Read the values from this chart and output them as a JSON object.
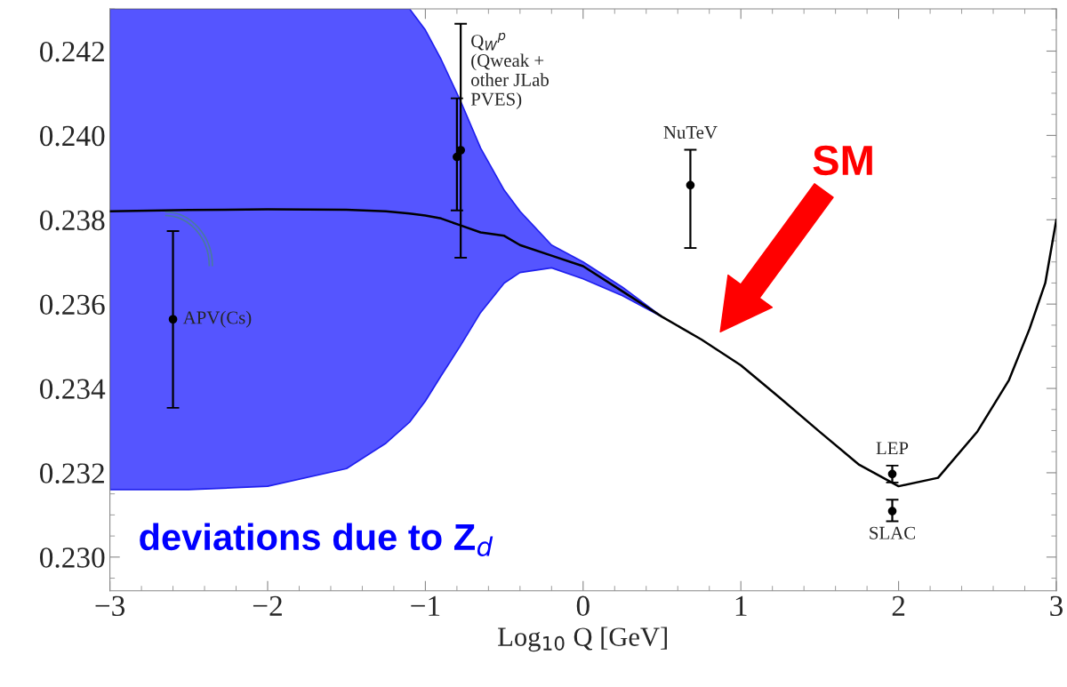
{
  "chart_data": {
    "type": "line",
    "xlabel": "Log$_{10}$ Q [GeV]",
    "xlim": [
      -3,
      3
    ],
    "ylim": [
      0.2292,
      0.243
    ],
    "xticks": [
      {
        "value": -3,
        "label": "−3"
      },
      {
        "value": -2,
        "label": "−2"
      },
      {
        "value": -1,
        "label": "−1"
      },
      0,
      1,
      2,
      3
    ],
    "yticks": [
      {
        "value": 0.23,
        "label": "0.230"
      },
      {
        "value": 0.232,
        "label": "0.232"
      },
      {
        "value": 0.234,
        "label": "0.234"
      },
      {
        "value": 0.236,
        "label": "0.236"
      },
      {
        "value": 0.238,
        "label": "0.238"
      },
      {
        "value": 0.24,
        "label": "0.240"
      },
      {
        "value": 0.242,
        "label": "0.242"
      }
    ],
    "series": [
      {
        "color": "#000000",
        "x": [
          -3,
          -2.5,
          -2,
          -1.5,
          -1.25,
          -1.1,
          -1,
          -0.9,
          -0.78,
          -0.65,
          -0.5,
          -0.4,
          -0.2,
          0,
          0.25,
          0.5,
          0.75,
          1,
          1.25,
          1.5,
          1.75,
          2,
          2.25,
          2.5,
          2.7,
          2.83,
          2.93,
          3
        ],
        "values": [
          0.2382,
          0.23823,
          0.23825,
          0.23824,
          0.2382,
          0.23815,
          0.2381,
          0.23803,
          0.23787,
          0.2377,
          0.23762,
          0.2374,
          0.23715,
          0.2369,
          0.2363,
          0.2357,
          0.23516,
          0.23455,
          0.23377,
          0.23297,
          0.23219,
          0.23168,
          0.23188,
          0.23298,
          0.2342,
          0.23541,
          0.2365,
          0.238
        ],
        "lower": [
          0.2316,
          0.2316,
          0.23168,
          0.2321,
          0.2327,
          0.2332,
          0.2337,
          0.2343,
          0.235,
          0.2358,
          0.2365,
          0.23675,
          0.23686,
          0.2366,
          0.2362,
          0.2357,
          null,
          null,
          null,
          null,
          null,
          null,
          null,
          null,
          null,
          null,
          null,
          null
        ],
        "upper": [
          0.243,
          0.243,
          0.243,
          0.243,
          0.243,
          0.243,
          0.2425,
          0.2418,
          0.24084,
          0.2397,
          0.2387,
          0.2382,
          0.2374,
          0.237,
          0.2364,
          0.2357,
          null,
          null,
          null,
          null,
          null,
          null,
          null,
          null,
          null,
          null,
          null,
          null
        ]
      },
      {
        "type": "scatter",
        "name": "APV(Cs)",
        "color": "#000000",
        "marker": "circle",
        "x": [
          -2.6
        ],
        "values": [
          0.23564
        ],
        "errors": [
          [
            0.23354,
            0.23773
          ]
        ]
      },
      {
        "type": "scatter",
        "name": "Q$_{W}$$^{p}$\n(Qweak +\nother JLab\nPVES)",
        "color": "#000000",
        "marker": "circle",
        "x": [
          -0.8,
          -0.776
        ],
        "values": [
          0.23949,
          0.23965
        ],
        "errors": [
          [
            0.23822,
            0.24088
          ],
          [
            0.2371,
            0.24265
          ]
        ]
      },
      {
        "type": "scatter",
        "name": "NuTeV",
        "color": "#000000",
        "marker": "circle",
        "x": [
          0.68
        ],
        "values": [
          0.23882
        ],
        "errors": [
          [
            0.23733,
            0.23966
          ]
        ]
      },
      {
        "type": "scatter",
        "name": "LEP",
        "color": "#000000",
        "marker": "circle",
        "x": [
          1.96
        ],
        "values": [
          0.23197
        ],
        "errors": [
          [
            0.23177,
            0.23217
          ]
        ]
      },
      {
        "type": "scatter",
        "name": "SLAC",
        "color": "#000000",
        "marker": "circle",
        "x": [
          1.96
        ],
        "values": [
          0.23109
        ],
        "errors": [
          [
            0.23085,
            0.23136
          ]
        ]
      }
    ],
    "annotations": [
      "SM",
      "deviations due to Z$_{d}$"
    ],
    "legend": false,
    "grid": false
  }
}
